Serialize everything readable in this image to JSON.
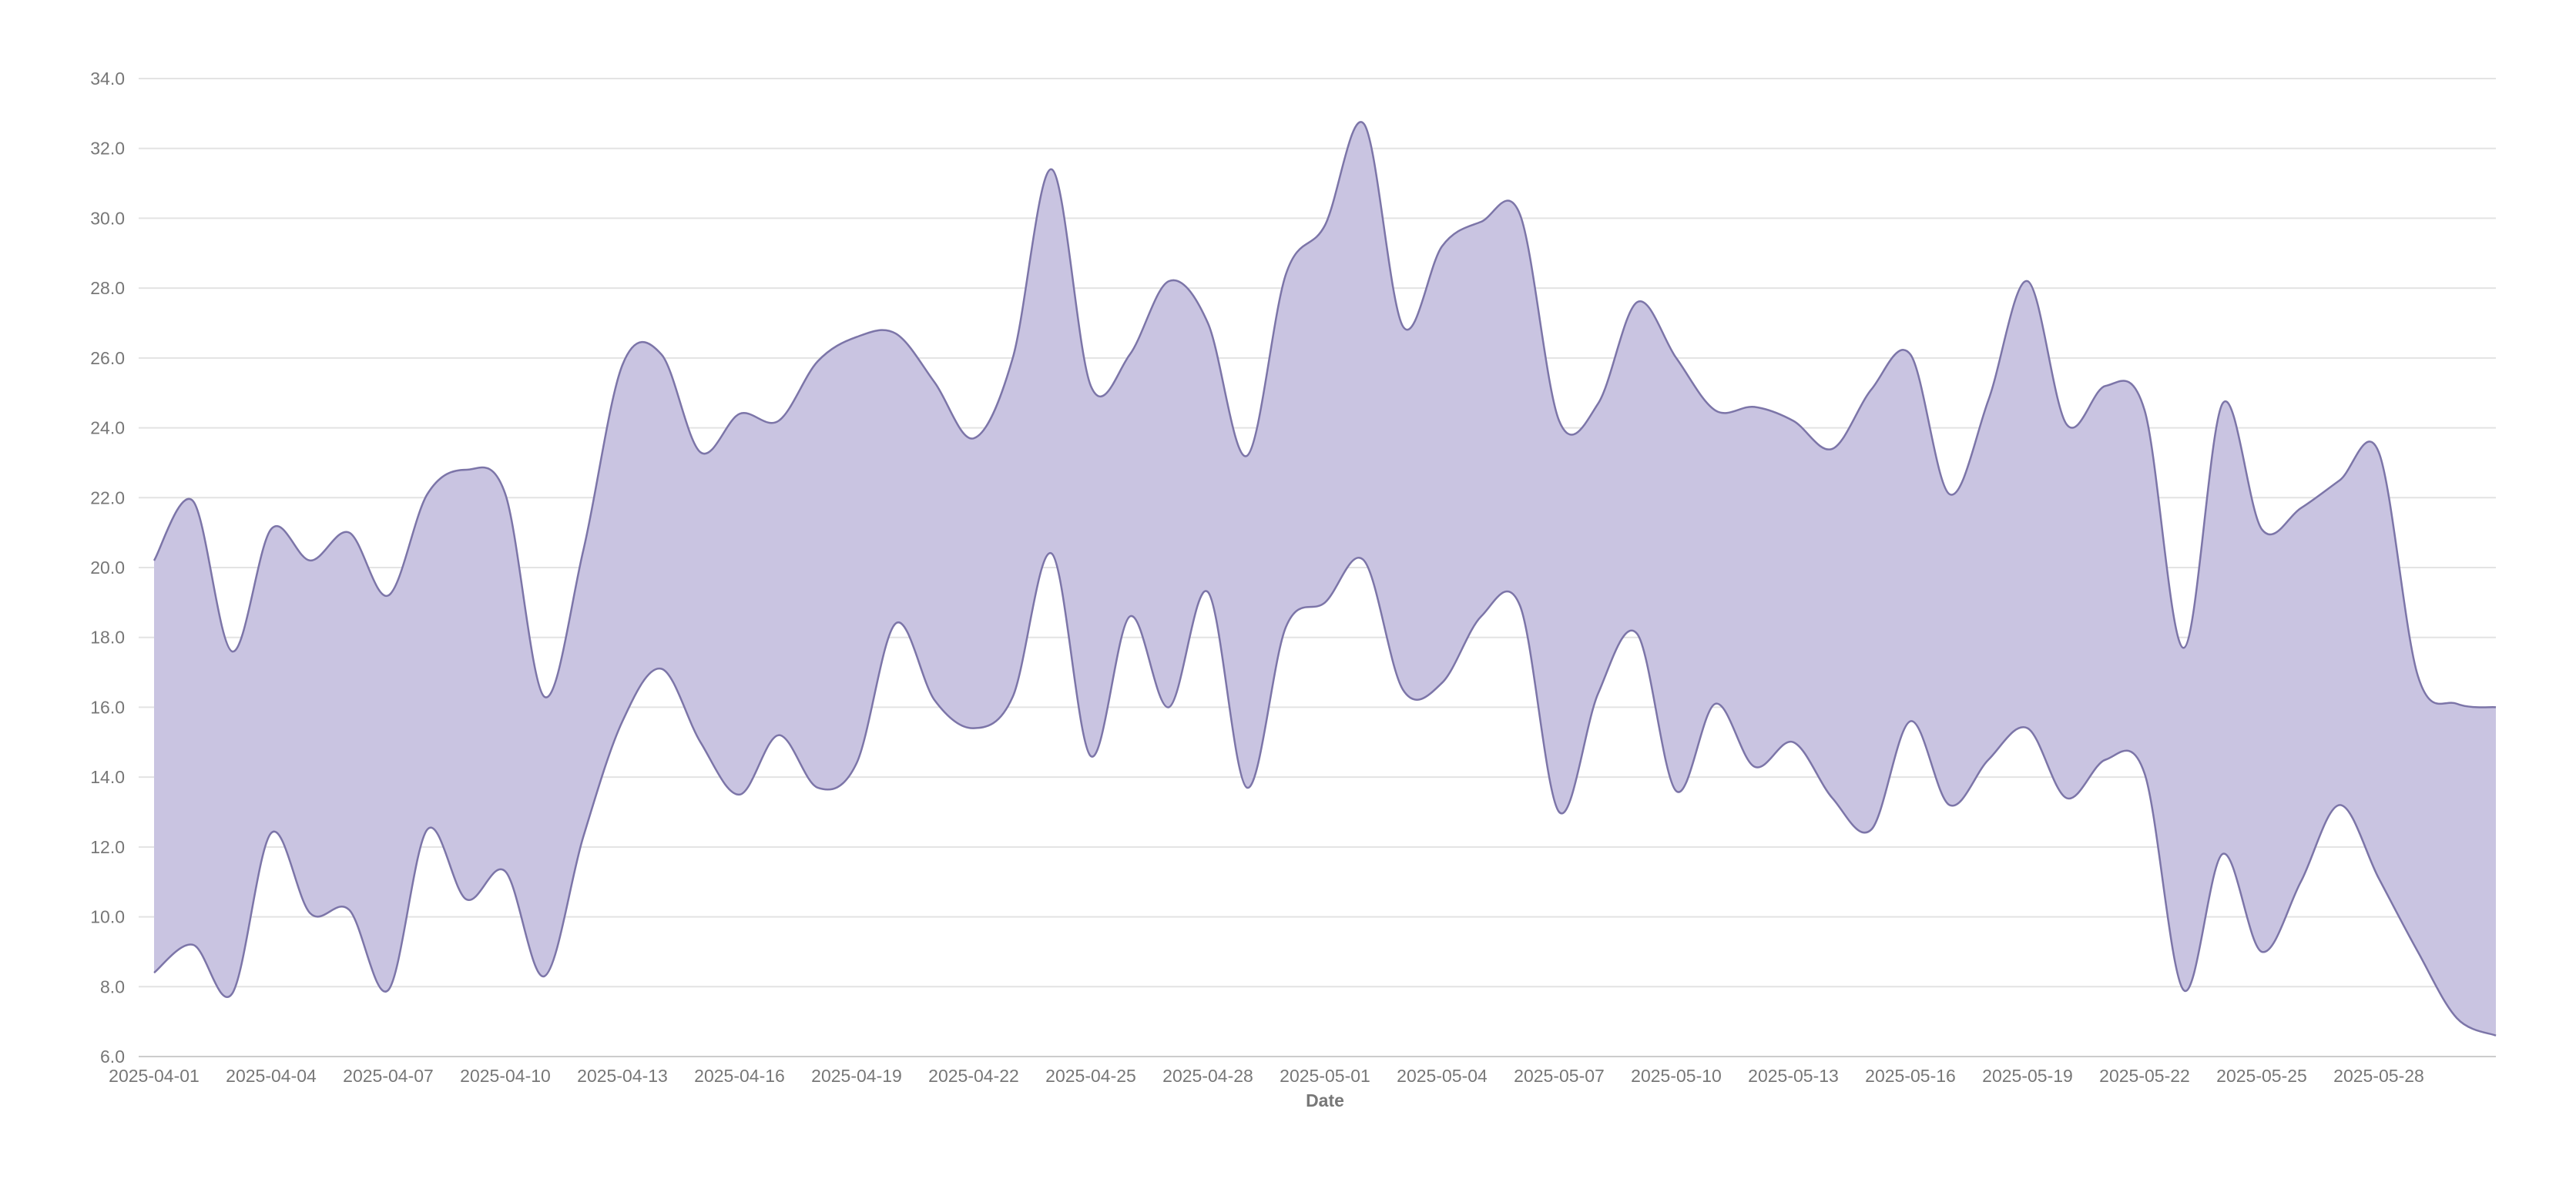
{
  "chart_data": {
    "type": "area",
    "subtype": "range-band",
    "xlabel": "Date",
    "ylabel": "",
    "ylim": [
      6.0,
      34.0
    ],
    "ytick_values": [
      6.0,
      8.0,
      10.0,
      12.0,
      14.0,
      16.0,
      18.0,
      20.0,
      22.0,
      24.0,
      26.0,
      28.0,
      30.0,
      32.0,
      34.0
    ],
    "ytick_labels": [
      "6.0",
      "8.0",
      "10.0",
      "12.0",
      "14.0",
      "16.0",
      "18.0",
      "20.0",
      "22.0",
      "24.0",
      "26.0",
      "28.0",
      "30.0",
      "32.0",
      "34.0"
    ],
    "xtick_labels": [
      "2025-04-01",
      "2025-04-04",
      "2025-04-07",
      "2025-04-10",
      "2025-04-13",
      "2025-04-16",
      "2025-04-19",
      "2025-04-22",
      "2025-04-25",
      "2025-04-28",
      "2025-05-01",
      "2025-05-04",
      "2025-05-07",
      "2025-05-10",
      "2025-05-13",
      "2025-05-16",
      "2025-05-19",
      "2025-05-22",
      "2025-05-25",
      "2025-05-28"
    ],
    "grid": true,
    "fill_color": "#c9c4e1",
    "line_color": "#7c75a8",
    "x": [
      "2025-04-01",
      "2025-04-02",
      "2025-04-03",
      "2025-04-04",
      "2025-04-05",
      "2025-04-06",
      "2025-04-07",
      "2025-04-08",
      "2025-04-09",
      "2025-04-10",
      "2025-04-11",
      "2025-04-12",
      "2025-04-13",
      "2025-04-14",
      "2025-04-15",
      "2025-04-16",
      "2025-04-17",
      "2025-04-18",
      "2025-04-19",
      "2025-04-20",
      "2025-04-21",
      "2025-04-22",
      "2025-04-23",
      "2025-04-24",
      "2025-04-25",
      "2025-04-26",
      "2025-04-27",
      "2025-04-28",
      "2025-04-29",
      "2025-04-30",
      "2025-05-01",
      "2025-05-02",
      "2025-05-03",
      "2025-05-04",
      "2025-05-05",
      "2025-05-06",
      "2025-05-07",
      "2025-05-08",
      "2025-05-09",
      "2025-05-10",
      "2025-05-11",
      "2025-05-12",
      "2025-05-13",
      "2025-05-14",
      "2025-05-15",
      "2025-05-16",
      "2025-05-17",
      "2025-05-18",
      "2025-05-19",
      "2025-05-20",
      "2025-05-21",
      "2025-05-22",
      "2025-05-23",
      "2025-05-24",
      "2025-05-25",
      "2025-05-26",
      "2025-05-27",
      "2025-05-28",
      "2025-05-29",
      "2025-05-30",
      "2025-05-31"
    ],
    "upper": [
      20.2,
      21.9,
      17.6,
      21.1,
      20.2,
      21.0,
      19.2,
      22.1,
      22.8,
      22.1,
      16.3,
      20.5,
      25.8,
      26.1,
      23.3,
      24.4,
      24.2,
      25.9,
      26.6,
      26.7,
      25.3,
      23.7,
      26.0,
      31.4,
      25.2,
      26.1,
      28.2,
      27.0,
      23.2,
      28.4,
      29.8,
      32.7,
      26.9,
      29.2,
      29.9,
      30.1,
      24.2,
      24.7,
      27.6,
      26.0,
      24.5,
      24.6,
      24.2,
      23.4,
      25.1,
      26.1,
      22.1,
      24.8,
      28.2,
      24.1,
      25.2,
      24.5,
      17.7,
      24.7,
      21.1,
      21.7,
      22.5,
      23.3,
      16.9,
      16.1,
      16.0
    ],
    "lower": [
      8.4,
      9.2,
      7.8,
      12.4,
      10.1,
      10.2,
      7.9,
      12.5,
      10.5,
      11.3,
      8.3,
      12.3,
      15.6,
      17.1,
      15.0,
      13.5,
      15.2,
      13.7,
      14.4,
      18.4,
      16.2,
      15.4,
      16.3,
      20.4,
      14.6,
      18.6,
      16.0,
      19.3,
      13.7,
      18.3,
      19.0,
      20.2,
      16.5,
      16.7,
      18.6,
      18.9,
      13.0,
      16.4,
      18.1,
      13.6,
      16.1,
      14.3,
      15.0,
      13.4,
      12.5,
      15.6,
      13.2,
      14.5,
      15.4,
      13.4,
      14.5,
      14.1,
      7.9,
      11.8,
      9.0,
      11.0,
      13.2,
      11.1,
      9.0,
      7.1,
      6.6
    ]
  }
}
